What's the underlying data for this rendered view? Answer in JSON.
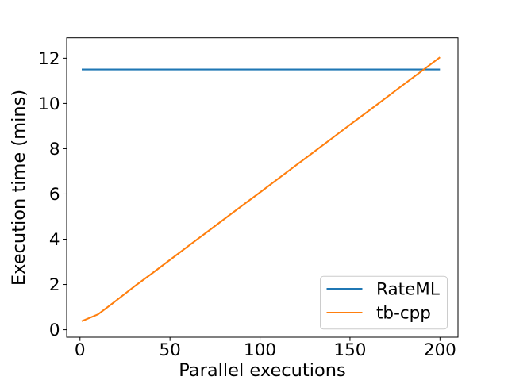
{
  "chart_data": {
    "type": "line",
    "title": "",
    "xlabel": "Parallel executions",
    "ylabel": "Execution time (mins)",
    "xlim": [
      -7.4,
      210
    ],
    "ylim": [
      -0.33,
      12.9
    ],
    "xticks": [
      0,
      50,
      100,
      150,
      200
    ],
    "yticks": [
      0,
      2,
      4,
      6,
      8,
      10,
      12
    ],
    "grid": false,
    "legend_position": "lower right",
    "colors": {
      "rateml": "#1f77b4",
      "tbcpp": "#ff7f0e",
      "legend_border": "#cccccc",
      "text": "#000000"
    },
    "series": [
      {
        "name": "RateML",
        "color": "#1f77b4",
        "x": [
          1,
          200
        ],
        "y": [
          11.5,
          11.5
        ]
      },
      {
        "name": "tb-cpp",
        "color": "#ff7f0e",
        "x": [
          1,
          10,
          20,
          30,
          40,
          50,
          60,
          70,
          80,
          90,
          100,
          110,
          120,
          130,
          140,
          150,
          160,
          170,
          180,
          190,
          200
        ],
        "y": [
          0.38,
          0.68,
          1.28,
          1.9,
          2.49,
          3.09,
          3.69,
          4.28,
          4.88,
          5.48,
          6.07,
          6.67,
          7.27,
          7.86,
          8.46,
          9.06,
          9.65,
          10.25,
          10.85,
          11.44,
          12.04
        ]
      }
    ]
  }
}
